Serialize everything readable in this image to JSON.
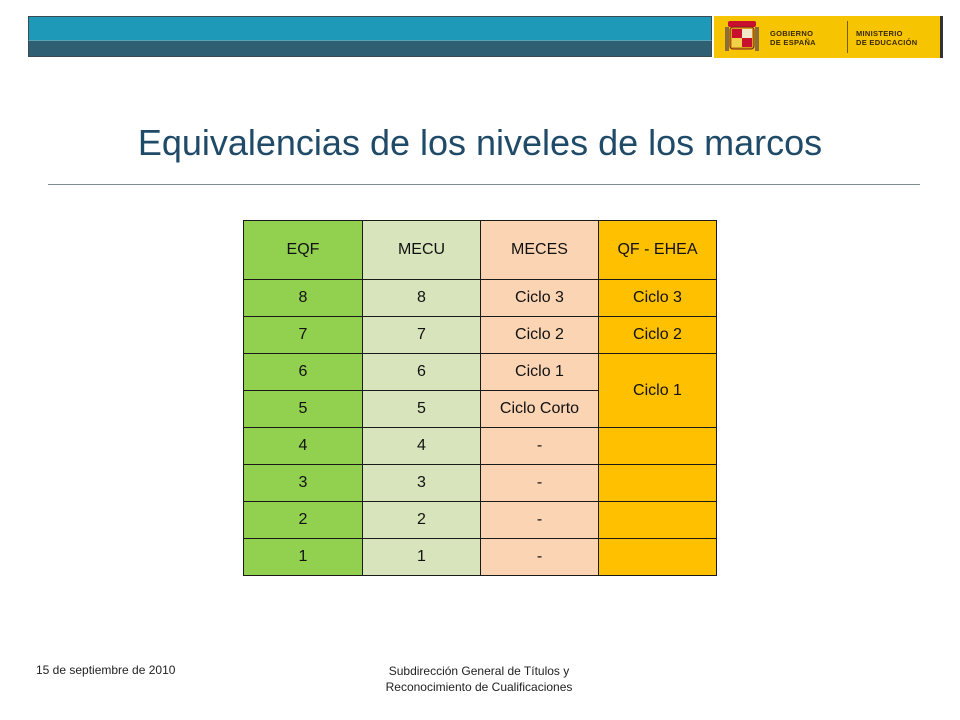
{
  "header": {
    "logo_text_left": "GOBIERNO\nDE ESPAÑA",
    "logo_text_right": "MINISTERIO\nDE EDUCACIÓN",
    "colors": {
      "bar_top": "#1e9ab8",
      "bar_bottom": "#2f5f72",
      "logo_bg": "#f6c400"
    }
  },
  "slide": {
    "title": "Equivalencias de los niveles de los marcos"
  },
  "table": {
    "headers": [
      "EQF",
      "MECU",
      "MECES",
      "QF - EHEA"
    ],
    "rows": [
      [
        "8",
        "8",
        "Ciclo 3",
        "Ciclo 3"
      ],
      [
        "7",
        "7",
        "Ciclo 2",
        "Ciclo 2"
      ],
      [
        "6",
        "6",
        "Ciclo 1",
        "Ciclo 1"
      ],
      [
        "5",
        "5",
        "Ciclo Corto",
        ""
      ],
      [
        "4",
        "4",
        "-",
        ""
      ],
      [
        "3",
        "3",
        "-",
        ""
      ],
      [
        "2",
        "2",
        "-",
        ""
      ],
      [
        "1",
        "1",
        "-",
        ""
      ]
    ],
    "column_colors": [
      "#92d050",
      "#d8e4bc",
      "#fbd4b4",
      "#ffc000"
    ]
  },
  "footer": {
    "date": "15 de septiembre de 2010",
    "org_line1": "Subdirección General de Títulos y",
    "org_line2": "Reconocimiento de Cualificaciones"
  }
}
